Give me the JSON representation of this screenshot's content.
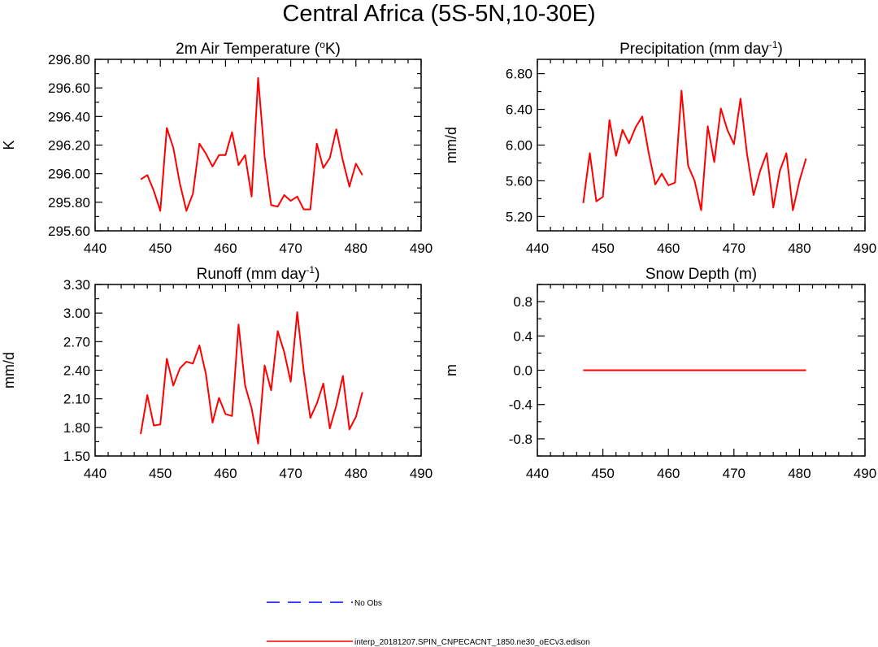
{
  "figure": {
    "title": "Central Africa (5S-5N,10-30E)"
  },
  "colors": {
    "model_line": "#ff0000",
    "obs_line": "#0000ff",
    "axis": "#000000",
    "background": "#ffffff"
  },
  "chart_data": [
    {
      "type": "line",
      "title": "2m Air Temperature (°K)",
      "title_main": "2m Air Temperature (",
      "title_sup": "o",
      "title_end": "K)",
      "xlabel": "",
      "ylabel": "K",
      "xlim": [
        440,
        490
      ],
      "ylim": [
        295.6,
        296.8
      ],
      "xticks": [
        440,
        450,
        460,
        470,
        480,
        490
      ],
      "xtick_labels": [
        "440",
        "450",
        "460",
        "470",
        "480",
        "490"
      ],
      "yticks": [
        295.6,
        295.8,
        296.0,
        296.2,
        296.4,
        296.6,
        296.8
      ],
      "ytick_labels": [
        "295.60",
        "295.80",
        "296.00",
        "296.20",
        "296.40",
        "296.60",
        "296.80"
      ],
      "x": [
        447,
        448,
        449,
        450,
        451,
        452,
        453,
        454,
        455,
        456,
        457,
        458,
        459,
        460,
        461,
        462,
        463,
        464,
        465,
        466,
        467,
        468,
        469,
        470,
        471,
        472,
        473,
        474,
        475,
        476,
        477,
        478,
        479,
        480,
        481
      ],
      "series": [
        {
          "name": "interp_20181207.SPIN_CNPECACNT_1850.ne30_oECv3.edison",
          "values": [
            295.96,
            295.99,
            295.88,
            295.74,
            296.32,
            296.18,
            295.93,
            295.74,
            295.86,
            296.21,
            296.14,
            296.05,
            296.13,
            296.13,
            296.29,
            296.06,
            296.13,
            295.84,
            296.67,
            296.12,
            295.78,
            295.77,
            295.85,
            295.81,
            295.84,
            295.75,
            295.75,
            296.21,
            296.04,
            296.11,
            296.31,
            296.09,
            295.91,
            296.07,
            295.99
          ]
        }
      ]
    },
    {
      "type": "line",
      "title": "Precipitation (mm day-1)",
      "title_main": "Precipitation (mm day",
      "title_sup": "-1",
      "title_end": ")",
      "xlabel": "",
      "ylabel": "mm/d",
      "xlim": [
        440,
        490
      ],
      "ylim": [
        5.04,
        6.96
      ],
      "xticks": [
        440,
        450,
        460,
        470,
        480,
        490
      ],
      "xtick_labels": [
        "440",
        "450",
        "460",
        "470",
        "480",
        "490"
      ],
      "yticks": [
        5.2,
        5.6,
        6.0,
        6.4,
        6.8
      ],
      "ytick_labels": [
        "5.20",
        "5.60",
        "6.00",
        "6.40",
        "6.80"
      ],
      "x": [
        447,
        448,
        449,
        450,
        451,
        452,
        453,
        454,
        455,
        456,
        457,
        458,
        459,
        460,
        461,
        462,
        463,
        464,
        465,
        466,
        467,
        468,
        469,
        470,
        471,
        472,
        473,
        474,
        475,
        476,
        477,
        478,
        479,
        480,
        481
      ],
      "series": [
        {
          "name": "interp_20181207.SPIN_CNPECACNT_1850.ne30_oECv3.edison",
          "values": [
            5.35,
            5.91,
            5.37,
            5.42,
            6.28,
            5.88,
            6.17,
            6.02,
            6.2,
            6.32,
            5.91,
            5.56,
            5.68,
            5.55,
            5.58,
            6.61,
            5.77,
            5.6,
            5.27,
            6.21,
            5.81,
            6.41,
            6.17,
            6.01,
            6.52,
            5.9,
            5.44,
            5.71,
            5.91,
            5.3,
            5.71,
            5.91,
            5.27,
            5.6,
            5.85
          ]
        }
      ]
    },
    {
      "type": "line",
      "title": "Runoff (mm day-1)",
      "title_main": "Runoff (mm day",
      "title_sup": "-1",
      "title_end": ")",
      "xlabel": "",
      "ylabel": "mm/d",
      "xlim": [
        440,
        490
      ],
      "ylim": [
        1.5,
        3.3
      ],
      "xticks": [
        440,
        450,
        460,
        470,
        480,
        490
      ],
      "xtick_labels": [
        "440",
        "450",
        "460",
        "470",
        "480",
        "490"
      ],
      "yticks": [
        1.5,
        1.8,
        2.1,
        2.4,
        2.7,
        3.0,
        3.3
      ],
      "ytick_labels": [
        "1.50",
        "1.80",
        "2.10",
        "2.40",
        "2.70",
        "3.00",
        "3.30"
      ],
      "x": [
        447,
        448,
        449,
        450,
        451,
        452,
        453,
        454,
        455,
        456,
        457,
        458,
        459,
        460,
        461,
        462,
        463,
        464,
        465,
        466,
        467,
        468,
        469,
        470,
        471,
        472,
        473,
        474,
        475,
        476,
        477,
        478,
        479,
        480,
        481
      ],
      "series": [
        {
          "name": "interp_20181207.SPIN_CNPECACNT_1850.ne30_oECv3.edison",
          "values": [
            1.73,
            2.14,
            1.82,
            1.83,
            2.52,
            2.24,
            2.42,
            2.49,
            2.47,
            2.66,
            2.36,
            1.85,
            2.11,
            1.94,
            1.92,
            2.88,
            2.24,
            2.0,
            1.63,
            2.45,
            2.19,
            2.81,
            2.59,
            2.28,
            3.01,
            2.39,
            1.9,
            2.05,
            2.26,
            1.79,
            2.03,
            2.34,
            1.78,
            1.91,
            2.17
          ]
        }
      ]
    },
    {
      "type": "line",
      "title": "Snow Depth (m)",
      "title_main": "Snow Depth (m)",
      "title_sup": "",
      "title_end": "",
      "xlabel": "",
      "ylabel": "m",
      "xlim": [
        440,
        490
      ],
      "ylim": [
        -1.0,
        1.0
      ],
      "xticks": [
        440,
        450,
        460,
        470,
        480,
        490
      ],
      "xtick_labels": [
        "440",
        "450",
        "460",
        "470",
        "480",
        "490"
      ],
      "yticks": [
        -0.8,
        -0.4,
        0.0,
        0.4,
        0.8
      ],
      "ytick_labels": [
        "-0.8",
        "-0.4",
        "0.0",
        "0.4",
        "0.8"
      ],
      "x": [
        447,
        448,
        449,
        450,
        451,
        452,
        453,
        454,
        455,
        456,
        457,
        458,
        459,
        460,
        461,
        462,
        463,
        464,
        465,
        466,
        467,
        468,
        469,
        470,
        471,
        472,
        473,
        474,
        475,
        476,
        477,
        478,
        479,
        480,
        481
      ],
      "series": [
        {
          "name": "interp_20181207.SPIN_CNPECACNT_1850.ne30_oECv3.edison",
          "values": [
            0,
            0,
            0,
            0,
            0,
            0,
            0,
            0,
            0,
            0,
            0,
            0,
            0,
            0,
            0,
            0,
            0,
            0,
            0,
            0,
            0,
            0,
            0,
            0,
            0,
            0,
            0,
            0,
            0,
            0,
            0,
            0,
            0,
            0,
            0
          ]
        }
      ]
    }
  ],
  "legend": {
    "entries": [
      {
        "label": "No Obs",
        "style": "dashed",
        "color": "#0000ff"
      },
      {
        "label": "interp_20181207.SPIN_CNPECACNT_1850.ne30_oECv3.edison",
        "style": "solid",
        "color": "#ff0000"
      }
    ]
  }
}
